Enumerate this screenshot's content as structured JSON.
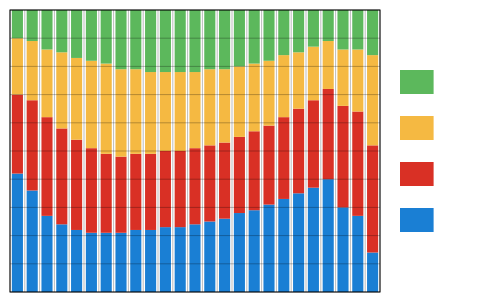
{
  "chart_data": {
    "type": "bar",
    "stacked": true,
    "categories": [
      null,
      null,
      null,
      null,
      null,
      null,
      null,
      null,
      null,
      null,
      null,
      null,
      null,
      null,
      null,
      null,
      null,
      null,
      null,
      null,
      null,
      null,
      null,
      null,
      null
    ],
    "series": [
      {
        "color": "#1a7fd4",
        "values": [
          42,
          36,
          27,
          24,
          22,
          21,
          21,
          21,
          22,
          22,
          23,
          23,
          24,
          25,
          26,
          28,
          29,
          31,
          33,
          35,
          37,
          40,
          30,
          27,
          14
        ]
      },
      {
        "color": "#d93025",
        "values": [
          28,
          32,
          35,
          34,
          32,
          30,
          28,
          27,
          27,
          27,
          27,
          27,
          27,
          27,
          27,
          27,
          28,
          28,
          29,
          30,
          31,
          32,
          36,
          37,
          38
        ]
      },
      {
        "color": "#f5b942",
        "values": [
          20,
          21,
          24,
          27,
          29,
          31,
          32,
          31,
          30,
          29,
          28,
          28,
          27,
          27,
          26,
          25,
          24,
          23,
          22,
          20,
          19,
          17,
          20,
          22,
          32
        ]
      },
      {
        "color": "#5cb85c",
        "values": [
          10,
          11,
          14,
          15,
          17,
          18,
          19,
          21,
          21,
          22,
          22,
          22,
          22,
          21,
          21,
          20,
          19,
          18,
          16,
          15,
          13,
          11,
          14,
          14,
          16
        ]
      }
    ],
    "ylim": [
      0,
      100
    ],
    "yticks": [
      0,
      10,
      20,
      30,
      40,
      50,
      60,
      70,
      80,
      90,
      100
    ],
    "grid": true,
    "tick_labels": false,
    "legend": "right"
  }
}
